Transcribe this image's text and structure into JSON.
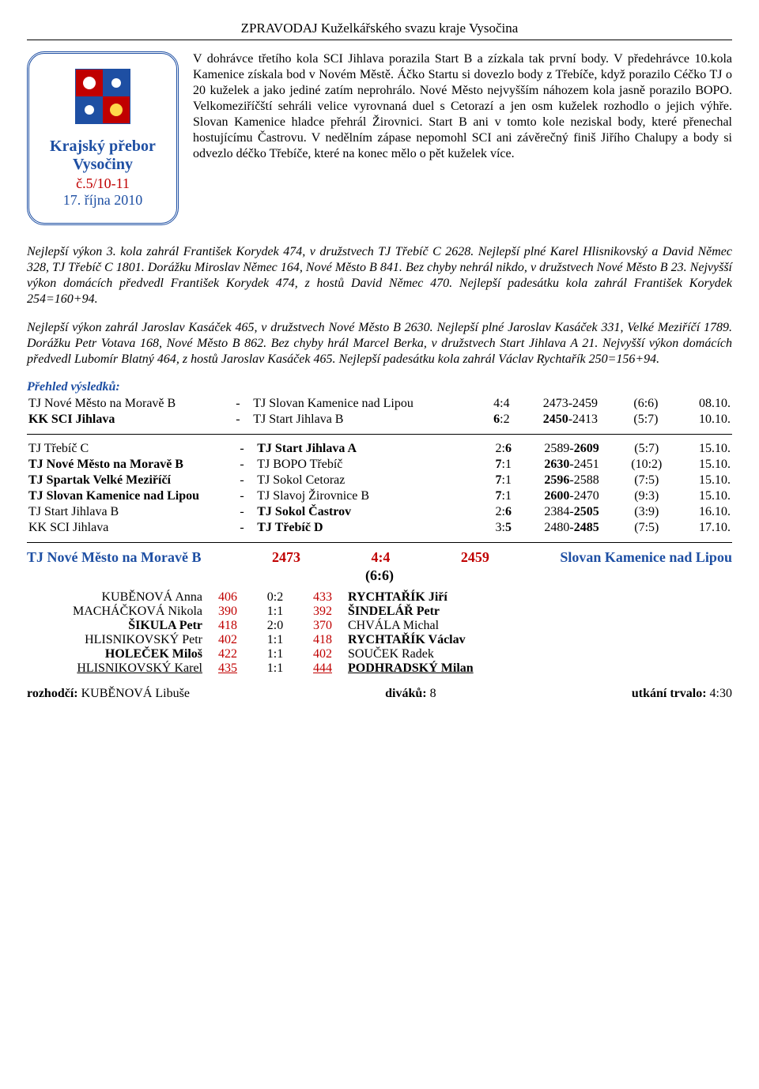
{
  "header": "ZPRAVODAJ  Kuželkářského svazu kraje Vysočina",
  "badge": {
    "line1": "Krajský přebor",
    "line2": "Vysočiny",
    "line3": "č.5/10-11",
    "line4": "17. října 2010"
  },
  "intro": "V dohrávce třetího kola SCI Jihlava porazila Start B a zízkala tak první body. V předehrávce 10.kola Kamenice získala bod v Novém Městě. Áčko Startu si dovezlo body z Třebíče, když porazilo Céčko TJ o 20 kuželek a jako jediné zatím neprohrálo. Nové Město nejvyšším náhozem kola jasně porazilo BOPO. Velkomeziříčští sehráli velice vyrovnaná duel s Cetorazí a jen osm kuželek rozhodlo o jejich výhře. Slovan Kamenice hladce přehrál Žirovnici. Start B ani v tomto kole neziskal body, které přenechal hostujícímu Častrovu. V nedělním zápase nepomohl SCI ani závěrečný finiš Jiřího Chalupy a body si odvezlo déčko Třebíče, které na konec mělo o pět kuželek více.",
  "para1": "Nejlepší výkon 3. kola zahrál František Korydek 474, v družstvech TJ Třebíč C 2628. Nejlepší plné Karel Hlisnikovský a David Němec 328, TJ Třebíč C 1801. Dorážku Miroslav Němec 164, Nové Město B 841. Bez chyby nehrál nikdo, v družstvech Nové Město B 23. Nejvyšší výkon domácích předvedl František Korydek 474, z hostů David Němec 470. Nejlepší padesátku kola zahrál František Korydek  254=160+94.",
  "para2": "Nejlepší výkon zahrál Jaroslav Kasáček 465, v družstvech Nové Město B 2630. Nejlepší plné Jaroslav Kasáček 331, Velké Meziříčí 1789. Dorážku Petr Votava 168, Nové Město B 862. Bez chyby hrál Marcel Berka, v družstvech Start Jihlava A 21. Nejvyšší výkon domácích předvedl Lubomír Blatný 464, z hostů Jaroslav Kasáček 465. Nejlepší padesátku kola zahrál Václav Rychtařík 250=156+94.",
  "overview_title": "Přehled výsledků:",
  "results1": [
    {
      "t1": "TJ Nové Město na Moravě B",
      "t2": "TJ Slovan Kamenice nad Lipou",
      "pts": "4:4",
      "score": "2473-2459",
      "ratio": "(6:6)",
      "date": "08.10."
    },
    {
      "t1": "KK SCI Jihlava",
      "t2": "TJ Start Jihlava B",
      "pts": "6:2",
      "score": "2450-2413",
      "ratio": "(5:7)",
      "date": "10.10.",
      "pts_html": "<b>6</b>:2",
      "score_html": "<b>2450</b>-2413",
      "t2_html": "<b>TJ Start Jihlava B</b>"
    }
  ],
  "results2": [
    {
      "t1": "TJ Třebíč C",
      "t2": "TJ Start Jihlava A",
      "pts": "2:6",
      "score": "2589-2609",
      "ratio": "(5:7)",
      "date": "15.10."
    },
    {
      "t1": "TJ Nové Město na Moravě B",
      "t2": "TJ BOPO Třebíč",
      "pts": "7:1",
      "score": "2630-2451",
      "ratio": "(10:2)",
      "date": "15.10."
    },
    {
      "t1": "TJ Spartak Velké Meziříčí",
      "t2": "TJ Sokol Cetoraz",
      "pts": "7:1",
      "score": "2596-2588",
      "ratio": "(7:5)",
      "date": "15.10."
    },
    {
      "t1": "TJ Slovan Kamenice nad Lipou",
      "t2": "TJ Slavoj Žirovnice B",
      "pts": "7:1",
      "score": "2600-2470",
      "ratio": "(9:3)",
      "date": "15.10."
    },
    {
      "t1": "TJ Start Jihlava B",
      "t2": "TJ Sokol Častrov",
      "pts": "2:6",
      "score": "2384-2505",
      "ratio": "(3:9)",
      "date": "16.10."
    },
    {
      "t1": "KK SCI Jihlava",
      "t2": "TJ Třebíč D",
      "pts": "3:5",
      "score": "2480-2485",
      "ratio": "(7:5)",
      "date": "17.10."
    }
  ],
  "match": {
    "home": "TJ Nové Město na Moravě B",
    "home_score": "2473",
    "pts": "4:4",
    "away_score": "2459",
    "away": "Slovan Kamenice nad Lipou",
    "center": "(6:6)",
    "players": [
      {
        "l": "KUBĚNOVÁ Anna",
        "s1": "406",
        "mid": "0:2",
        "s2": "433",
        "r": "RYCHTAŘÍK Jiří",
        "lbold": false,
        "rbold": true
      },
      {
        "l": "MACHÁČKOVÁ Nikola",
        "s1": "390",
        "mid": "1:1",
        "s2": "392",
        "r": "ŠINDELÁŘ Petr",
        "lbold": false,
        "rbold": true
      },
      {
        "l": "ŠIKULA Petr",
        "s1": "418",
        "mid": "2:0",
        "s2": "370",
        "r": "CHVÁLA Michal",
        "lbold": true,
        "rbold": false
      },
      {
        "l": "HLISNIKOVSKÝ Petr",
        "s1": "402",
        "mid": "1:1",
        "s2": "418",
        "r": "RYCHTAŘÍK Václav",
        "lbold": false,
        "rbold": true
      },
      {
        "l": "HOLEČEK Miloš",
        "s1": "422",
        "mid": "1:1",
        "s2": "402",
        "r": "SOUČEK Radek",
        "lbold": true,
        "rbold": false
      },
      {
        "l": "HLISNIKOVSKÝ Karel",
        "s1": "435",
        "mid": "1:1",
        "s2": "444",
        "r": "PODHRADSKÝ Milan",
        "lbold": false,
        "rbold": true,
        "lul": true,
        "rul": true
      }
    ],
    "ref_label": "rozhodčí:",
    "ref": "KUBĚNOVÁ Libuše",
    "spec_label": "diváků:",
    "spec": "8",
    "dur_label": "utkání trvalo:",
    "dur": "4:30"
  }
}
